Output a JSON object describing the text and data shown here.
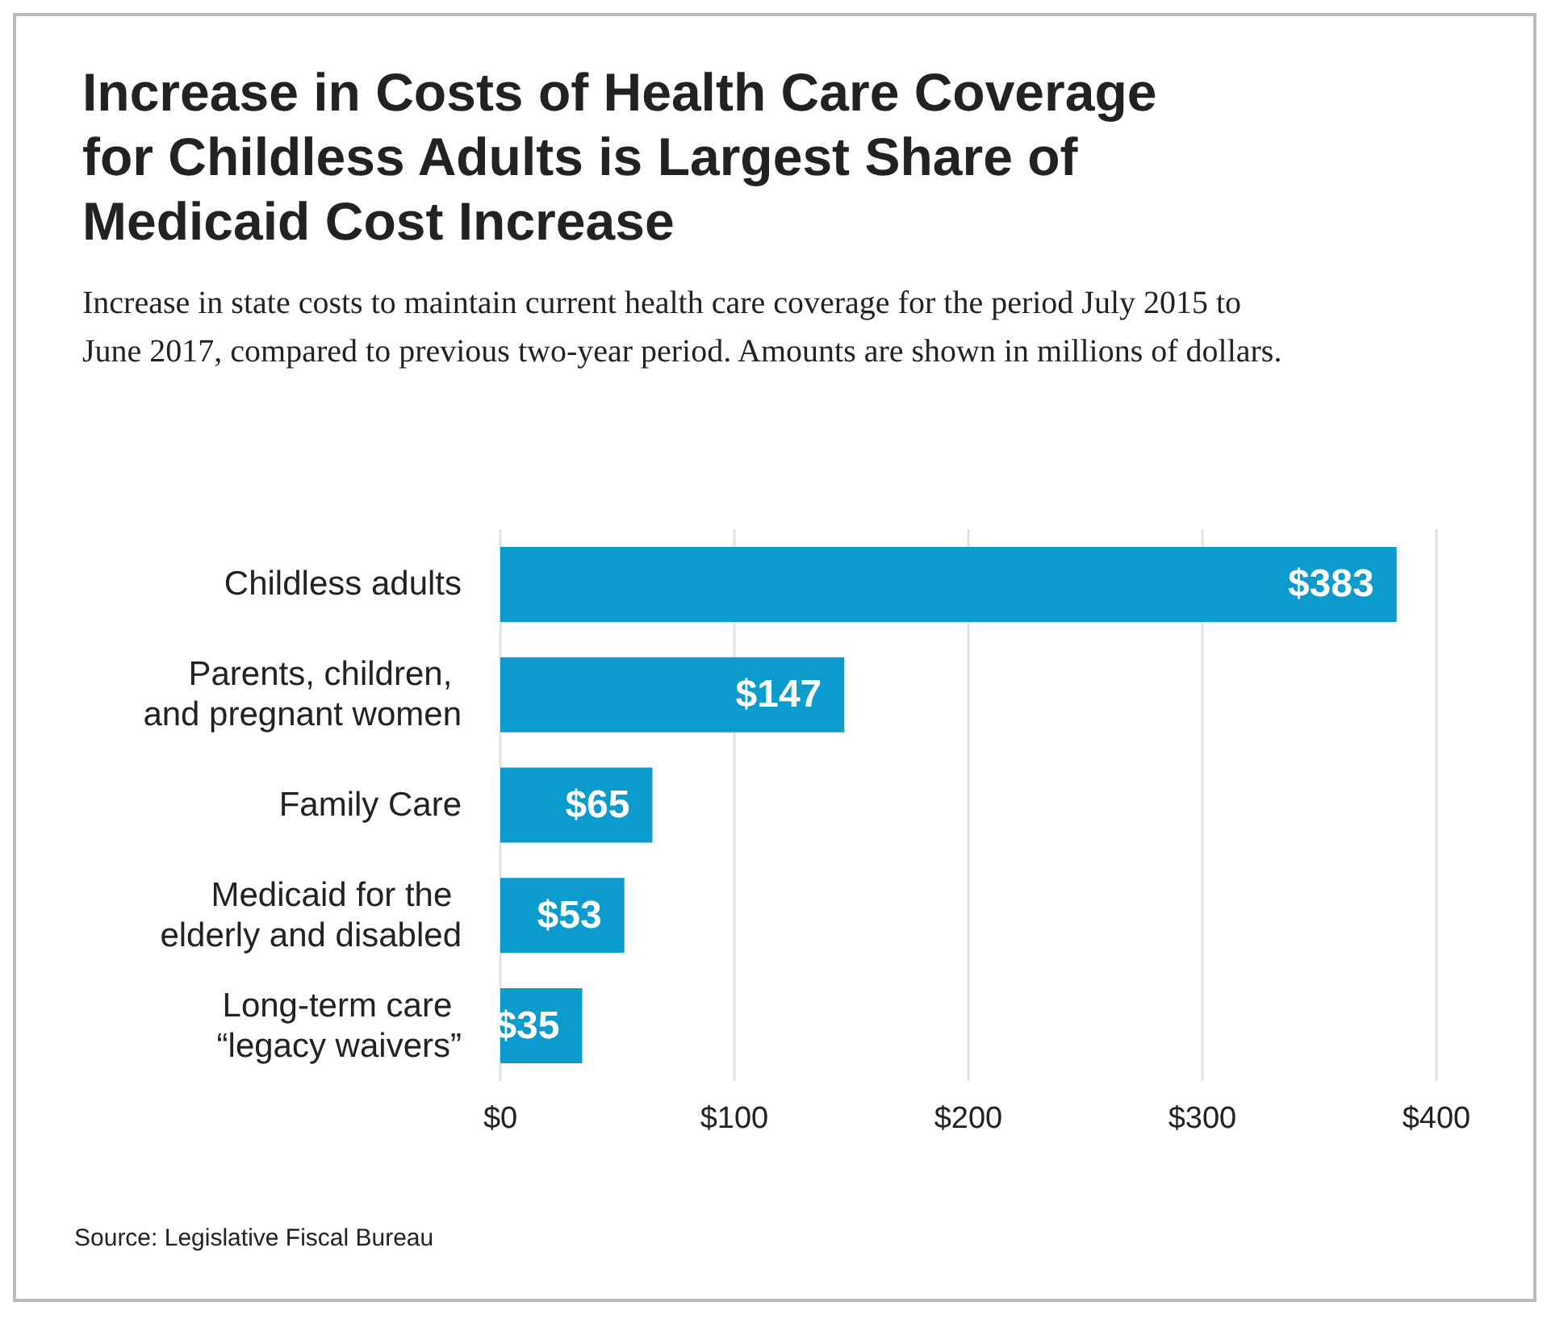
{
  "chart_data": {
    "type": "bar",
    "orientation": "horizontal",
    "title": "Increase in Costs of Health Care Coverage for Childless Adults is Largest Share of Medicaid Cost Increase",
    "subtitle": "Increase in state costs to maintain current health care coverage for the period July 2015 to June 2017, compared to previous two-year period. Amounts are shown in millions of dollars.",
    "categories": [
      "Childless adults",
      "Parents, children, and pregnant women",
      "Family Care",
      "Medicaid for the elderly and disabled",
      "Long-term care “legacy waivers”"
    ],
    "values": [
      383,
      147,
      65,
      53,
      35
    ],
    "color": "#0b9bcc",
    "value_labels": [
      "$383",
      "$147",
      "$65",
      "$53",
      "$35"
    ],
    "xlim": [
      0,
      400
    ],
    "xticks": [
      {
        "value": 0,
        "label": "$0"
      },
      {
        "value": 100,
        "label": "$100"
      },
      {
        "value": 200,
        "label": "$200"
      },
      {
        "value": 300,
        "label": "$300"
      },
      {
        "value": 400,
        "label": "$400"
      }
    ],
    "grid": "x",
    "annotations": [
      "Source: Legislative Fiscal Bureau"
    ]
  }
}
